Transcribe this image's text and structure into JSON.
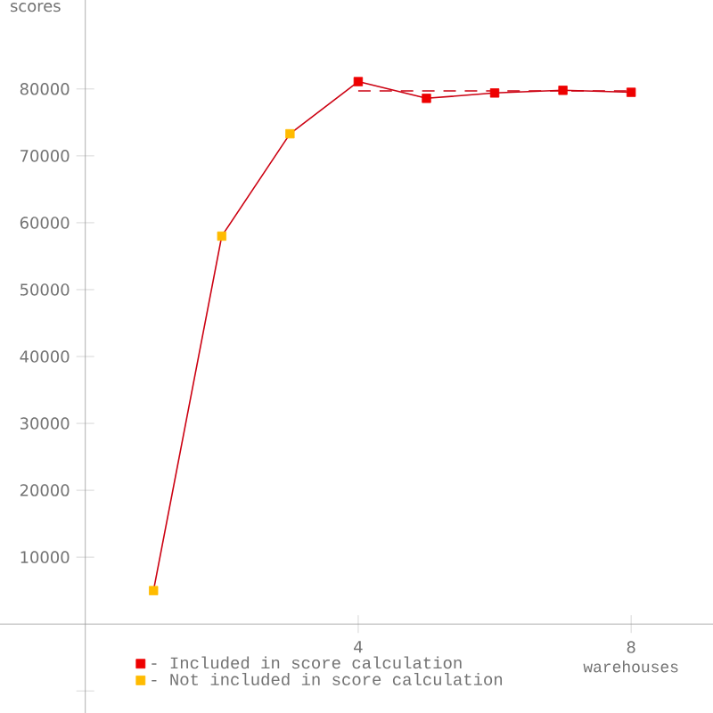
{
  "chart_data": {
    "type": "line",
    "xlabel": "warehouses",
    "ylabel": "scores",
    "xlim": [
      -1.25,
      9.2
    ],
    "ylim": [
      -13300,
      93300
    ],
    "xticks": [
      4,
      8
    ],
    "yticks": [
      {
        "value": -10000,
        "label": null
      },
      10000,
      20000,
      30000,
      40000,
      50000,
      60000,
      70000,
      80000
    ],
    "grid": false,
    "legend": "bottom left",
    "series": [
      {
        "color": "#cc0011",
        "x": [
          1,
          2,
          3,
          4,
          5,
          6,
          7,
          8
        ],
        "values": [
          5000,
          58000,
          73300,
          81100,
          78600,
          79400,
          79800,
          79500
        ],
        "marker": "none",
        "line_style": "solid"
      },
      {
        "color": "#cc0011",
        "x": [
          4,
          8
        ],
        "values": [
          79700,
          79700
        ],
        "marker": "none",
        "line_style": "dashed"
      },
      {
        "type": "scatter",
        "name": "- Included in score calculation",
        "color": "#ee0000",
        "x": [
          4,
          5,
          6,
          7,
          8
        ],
        "values": [
          81100,
          78600,
          79400,
          79800,
          79500
        ],
        "marker": "square"
      },
      {
        "type": "scatter",
        "name": "- Not included in score calculation",
        "color": "#ffbb00",
        "x": [
          1,
          2,
          3
        ],
        "values": [
          5000,
          58000,
          73300
        ],
        "marker": "square"
      }
    ]
  }
}
